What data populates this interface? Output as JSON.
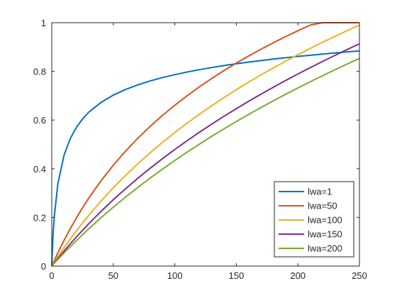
{
  "chart_data": {
    "type": "line",
    "title": "",
    "xlabel": "",
    "ylabel": "",
    "xlim": [
      0,
      250
    ],
    "ylim": [
      0,
      1
    ],
    "x_ticks": [
      0,
      50,
      100,
      150,
      200,
      250
    ],
    "y_ticks": [
      0,
      0.2,
      0.4,
      0.6,
      0.8,
      1
    ],
    "x_tick_labels": [
      "0",
      "50",
      "100",
      "150",
      "200",
      "250"
    ],
    "y_tick_labels": [
      "0",
      "0.2",
      "0.4",
      "0.6",
      "0.8",
      "1"
    ],
    "grid": false,
    "legend_position": "bottom-right",
    "x": [
      0,
      1,
      2,
      5,
      10,
      15,
      20,
      25,
      30,
      40,
      50,
      60,
      70,
      80,
      90,
      100,
      110,
      120,
      130,
      140,
      150,
      160,
      170,
      180,
      190,
      200,
      210,
      220,
      230,
      240,
      250
    ],
    "series": [
      {
        "name": "lwa=1",
        "color": "#0072BD",
        "values": [
          0,
          0.1246,
          0.2015,
          0.3391,
          0.4558,
          0.5235,
          0.5697,
          0.6043,
          0.6319,
          0.6725,
          0.7025,
          0.7257,
          0.7447,
          0.7607,
          0.7746,
          0.7866,
          0.7974,
          0.807,
          0.8158,
          0.8239,
          0.8313,
          0.8381,
          0.8445,
          0.8505,
          0.8561,
          0.8614,
          0.8664,
          0.8711,
          0.8757,
          0.88,
          0.8841
        ]
      },
      {
        "name": "lwa=50",
        "color": "#D95319",
        "values": [
          0,
          0.0114,
          0.0226,
          0.0548,
          0.1057,
          0.1532,
          0.1976,
          0.2393,
          0.2785,
          0.3503,
          0.4145,
          0.4726,
          0.5256,
          0.5742,
          0.6192,
          0.661,
          0.7,
          0.7366,
          0.771,
          0.8035,
          0.8342,
          0.8634,
          0.8911,
          0.9176,
          0.9428,
          0.967,
          0.9901,
          1.0,
          1.0,
          1.0,
          1.0
        ]
      },
      {
        "name": "lwa=100",
        "color": "#EDB120",
        "values": [
          0,
          0.0078,
          0.0155,
          0.0385,
          0.0755,
          0.1108,
          0.1446,
          0.177,
          0.2082,
          0.2671,
          0.3218,
          0.3729,
          0.4208,
          0.4659,
          0.5085,
          0.5489,
          0.5873,
          0.624,
          0.659,
          0.6926,
          0.7248,
          0.7557,
          0.7855,
          0.8142,
          0.8419,
          0.8686,
          0.8944,
          0.9194,
          0.9436,
          0.9671,
          0.9899
        ]
      },
      {
        "name": "lwa=150",
        "color": "#7E2F8E",
        "values": [
          0,
          0.0063,
          0.0126,
          0.0314,
          0.0618,
          0.0912,
          0.1196,
          0.147,
          0.1737,
          0.2245,
          0.2725,
          0.3179,
          0.3611,
          0.4022,
          0.4415,
          0.4791,
          0.5152,
          0.5499,
          0.5834,
          0.6157,
          0.6469,
          0.6771,
          0.7064,
          0.7348,
          0.7624,
          0.7892,
          0.8153,
          0.8407,
          0.8655,
          0.8897,
          0.9133
        ]
      },
      {
        "name": "lwa=200",
        "color": "#77AC30",
        "values": [
          0,
          0.0055,
          0.011,
          0.0272,
          0.0538,
          0.0796,
          0.1047,
          0.1291,
          0.1528,
          0.1985,
          0.242,
          0.2836,
          0.3235,
          0.3617,
          0.3985,
          0.4339,
          0.4681,
          0.5011,
          0.5331,
          0.564,
          0.594,
          0.6231,
          0.6514,
          0.6789,
          0.7057,
          0.7318,
          0.7573,
          0.7822,
          0.8065,
          0.8302,
          0.8534
        ]
      }
    ]
  }
}
